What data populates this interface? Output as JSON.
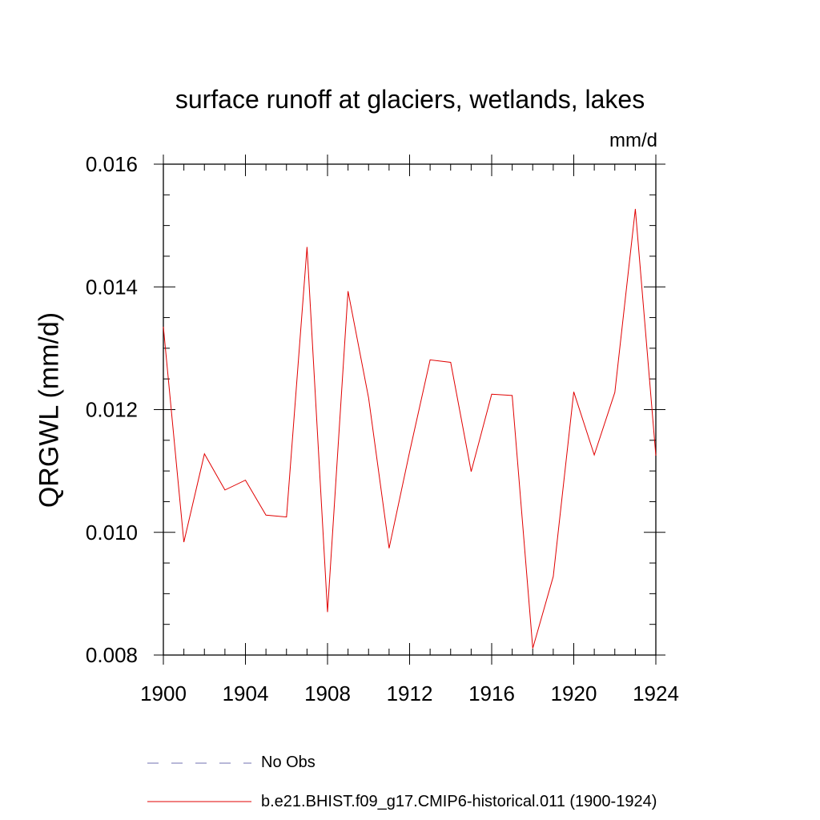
{
  "chart_data": {
    "type": "line",
    "title": "surface runoff at glaciers, wetlands, lakes",
    "units": "mm/d",
    "ylabel": "QRGWL  (mm/d)",
    "xlabel": "",
    "xlim": [
      1900,
      1924
    ],
    "ylim": [
      0.008,
      0.016
    ],
    "x_ticks": [
      1900,
      1904,
      1908,
      1912,
      1916,
      1920,
      1924
    ],
    "x_tick_labels": [
      "1900",
      "1904",
      "1908",
      "1912",
      "1916",
      "1920",
      "1924"
    ],
    "y_ticks": [
      0.008,
      0.01,
      0.012,
      0.014,
      0.016
    ],
    "y_tick_labels": [
      "0.008",
      "0.010",
      "0.012",
      "0.014",
      "0.016"
    ],
    "grid": false,
    "legend_position": "bottom",
    "legend": [
      {
        "label": "No Obs",
        "style": "dashed",
        "color": "#7070b0"
      },
      {
        "label": "b.e21.BHIST.f09_g17.CMIP6-historical.011 (1900-1924)",
        "style": "solid",
        "color": "#e00000"
      }
    ],
    "series": [
      {
        "name": "b.e21.BHIST.f09_g17.CMIP6-historical.011 (1900-1924)",
        "color": "#e00000",
        "x": [
          1900,
          1901,
          1902,
          1903,
          1904,
          1905,
          1906,
          1907,
          1908,
          1909,
          1910,
          1911,
          1912,
          1913,
          1914,
          1915,
          1916,
          1917,
          1918,
          1919,
          1920,
          1921,
          1922,
          1923,
          1924
        ],
        "values": [
          0.01335,
          0.00984,
          0.01128,
          0.01069,
          0.01085,
          0.01028,
          0.01025,
          0.01465,
          0.0087,
          0.01393,
          0.01219,
          0.00974,
          0.01131,
          0.01281,
          0.01277,
          0.01099,
          0.01225,
          0.01223,
          0.00811,
          0.00928,
          0.01229,
          0.01126,
          0.01228,
          0.01527,
          0.01125
        ]
      }
    ]
  }
}
